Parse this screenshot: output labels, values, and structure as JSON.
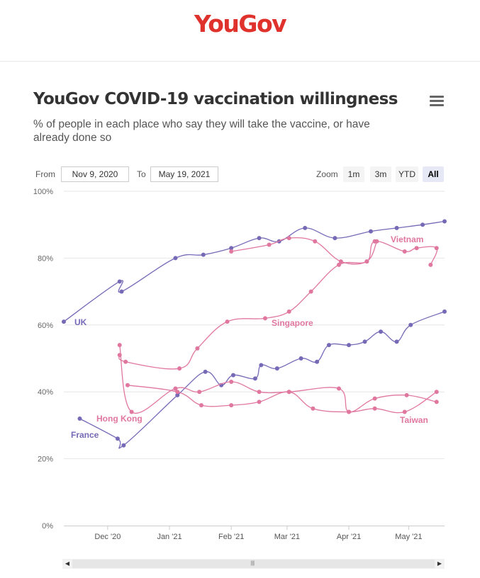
{
  "brand": {
    "logo_text": "YouGov",
    "color": "#e0322c"
  },
  "menu_icon": "hamburger-menu-icon",
  "range_selector": {
    "from_label": "From",
    "from_value": "Nov 9, 2020",
    "to_label": "To",
    "to_value": "May 19, 2021"
  },
  "zoom": {
    "label": "Zoom",
    "buttons": [
      {
        "label": "1m",
        "active": false
      },
      {
        "label": "3m",
        "active": false
      },
      {
        "label": "YTD",
        "active": false
      },
      {
        "label": "All",
        "active": true
      }
    ]
  },
  "scrollbar": {
    "left_icon": "triangle-left-icon",
    "right_icon": "triangle-right-icon",
    "grip_icon": "grip-icon",
    "grip_text": "|||"
  },
  "chart_data": {
    "type": "line",
    "title": "YouGov COVID-19 vaccination willingness",
    "subtitle": "% of people in each place who say they will take the vaccine, or have already done so",
    "x_axis": {
      "type": "date",
      "range": [
        "2020-11-09",
        "2021-05-19"
      ],
      "tick_labels": [
        "Dec '20",
        "Jan '21",
        "Feb '21",
        "Mar '21",
        "Apr '21",
        "May '21"
      ]
    },
    "y_axis": {
      "range": [
        0,
        100
      ],
      "tick_labels": [
        "0%",
        "20%",
        "40%",
        "60%",
        "80%",
        "100%"
      ],
      "unit": "%"
    },
    "grid": true,
    "legend": "inline labels",
    "series": [
      {
        "name": "UK",
        "color": "#7669b6",
        "points": [
          [
            "2020-11-09",
            61
          ],
          [
            "2020-12-07",
            73
          ],
          [
            "2020-12-08",
            70
          ],
          [
            "2021-01-04",
            80
          ],
          [
            "2021-01-18",
            81
          ],
          [
            "2021-02-01",
            83
          ],
          [
            "2021-02-15",
            86
          ],
          [
            "2021-02-25",
            85
          ],
          [
            "2021-03-10",
            89
          ],
          [
            "2021-03-25",
            86
          ],
          [
            "2021-04-12",
            88
          ],
          [
            "2021-04-25",
            89
          ],
          [
            "2021-05-08",
            90
          ],
          [
            "2021-05-19",
            91
          ]
        ]
      },
      {
        "name": "Vietnam",
        "color": "#e0779f",
        "points": [
          [
            "2021-02-01",
            82
          ],
          [
            "2021-02-20",
            84
          ],
          [
            "2021-03-02",
            86
          ],
          [
            "2021-03-15",
            85
          ],
          [
            "2021-03-28",
            79
          ],
          [
            "2021-04-10",
            79
          ],
          [
            "2021-04-14",
            85
          ],
          [
            "2021-04-29",
            82
          ],
          [
            "2021-05-05",
            83
          ],
          [
            "2021-05-15",
            83
          ],
          [
            "2021-05-12",
            78
          ]
        ]
      },
      {
        "name": "Singapore",
        "color": "#e0779f",
        "points": [
          [
            "2020-12-07",
            51
          ],
          [
            "2020-12-10",
            49
          ],
          [
            "2021-01-06",
            47
          ],
          [
            "2021-01-15",
            53
          ],
          [
            "2021-01-30",
            61
          ],
          [
            "2021-02-18",
            62
          ],
          [
            "2021-03-02",
            64
          ],
          [
            "2021-03-13",
            70
          ],
          [
            "2021-03-27",
            78
          ],
          [
            "2021-04-10",
            79
          ],
          [
            "2021-04-15",
            85
          ]
        ]
      },
      {
        "name": "France",
        "color": "#7669b6",
        "points": [
          [
            "2020-11-17",
            32
          ],
          [
            "2020-12-06",
            26
          ],
          [
            "2020-12-09",
            24
          ],
          [
            "2021-01-05",
            39
          ],
          [
            "2021-01-19",
            46
          ],
          [
            "2021-01-27",
            42
          ],
          [
            "2021-02-02",
            45
          ],
          [
            "2021-02-13",
            44
          ],
          [
            "2021-02-16",
            48
          ],
          [
            "2021-02-24",
            47
          ],
          [
            "2021-03-08",
            50
          ],
          [
            "2021-03-16",
            49
          ],
          [
            "2021-03-22",
            54
          ],
          [
            "2021-04-01",
            54
          ],
          [
            "2021-04-09",
            55
          ],
          [
            "2021-04-17",
            58
          ],
          [
            "2021-04-25",
            55
          ],
          [
            "2021-05-02",
            60
          ],
          [
            "2021-05-19",
            64
          ]
        ]
      },
      {
        "name": "Hong Kong",
        "color": "#e0779f",
        "points": [
          [
            "2020-12-07",
            54
          ],
          [
            "2020-12-13",
            34
          ],
          [
            "2021-01-04",
            41
          ],
          [
            "2021-01-16",
            40
          ],
          [
            "2021-02-01",
            43
          ],
          [
            "2021-02-15",
            40
          ],
          [
            "2021-03-02",
            40
          ],
          [
            "2021-03-27",
            41
          ],
          [
            "2021-04-01",
            34
          ],
          [
            "2021-04-14",
            38
          ],
          [
            "2021-04-30",
            39
          ],
          [
            "2021-05-15",
            37
          ]
        ]
      },
      {
        "name": "Taiwan",
        "color": "#e0779f",
        "points": [
          [
            "2020-12-11",
            42
          ],
          [
            "2021-01-05",
            40
          ],
          [
            "2021-01-17",
            36
          ],
          [
            "2021-02-01",
            36
          ],
          [
            "2021-02-15",
            37
          ],
          [
            "2021-03-02",
            40
          ],
          [
            "2021-03-14",
            35
          ],
          [
            "2021-04-01",
            34
          ],
          [
            "2021-04-14",
            35
          ],
          [
            "2021-04-29",
            34
          ],
          [
            "2021-05-15",
            40
          ]
        ]
      }
    ]
  }
}
